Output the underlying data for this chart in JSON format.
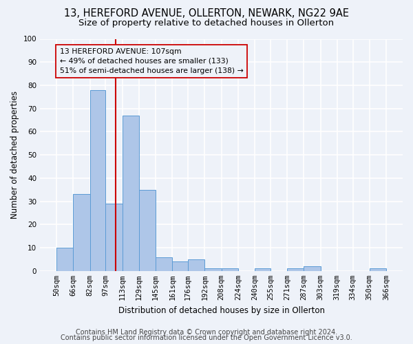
{
  "title1": "13, HEREFORD AVENUE, OLLERTON, NEWARK, NG22 9AE",
  "title2": "Size of property relative to detached houses in Ollerton",
  "xlabel": "Distribution of detached houses by size in Ollerton",
  "ylabel": "Number of detached properties",
  "annotation_line1": "13 HEREFORD AVENUE: 107sqm",
  "annotation_line2": "← 49% of detached houses are smaller (133)",
  "annotation_line3": "51% of semi-detached houses are larger (138) →",
  "footer1": "Contains HM Land Registry data © Crown copyright and database right 2024.",
  "footer2": "Contains public sector information licensed under the Open Government Licence v3.0.",
  "bar_color": "#aec6e8",
  "bar_edge_color": "#5b9bd5",
  "vline_x": 107,
  "vline_color": "#cc0000",
  "annotation_box_color": "#cc0000",
  "bins": [
    50,
    66,
    82,
    97,
    113,
    129,
    145,
    161,
    176,
    192,
    208,
    224,
    240,
    255,
    271,
    287,
    303,
    319,
    334,
    350,
    366
  ],
  "counts": [
    10,
    33,
    78,
    29,
    67,
    35,
    6,
    4,
    5,
    1,
    1,
    0,
    1,
    0,
    1,
    2,
    0,
    0,
    0,
    1
  ],
  "ylim": [
    0,
    100
  ],
  "yticks": [
    0,
    10,
    20,
    30,
    40,
    50,
    60,
    70,
    80,
    90,
    100
  ],
  "background_color": "#eef2f9",
  "grid_color": "#ffffff",
  "title1_fontsize": 10.5,
  "title2_fontsize": 9.5,
  "axis_label_fontsize": 8.5,
  "tick_fontsize": 7.5,
  "footer_fontsize": 7.0,
  "annotation_fontsize": 7.8
}
